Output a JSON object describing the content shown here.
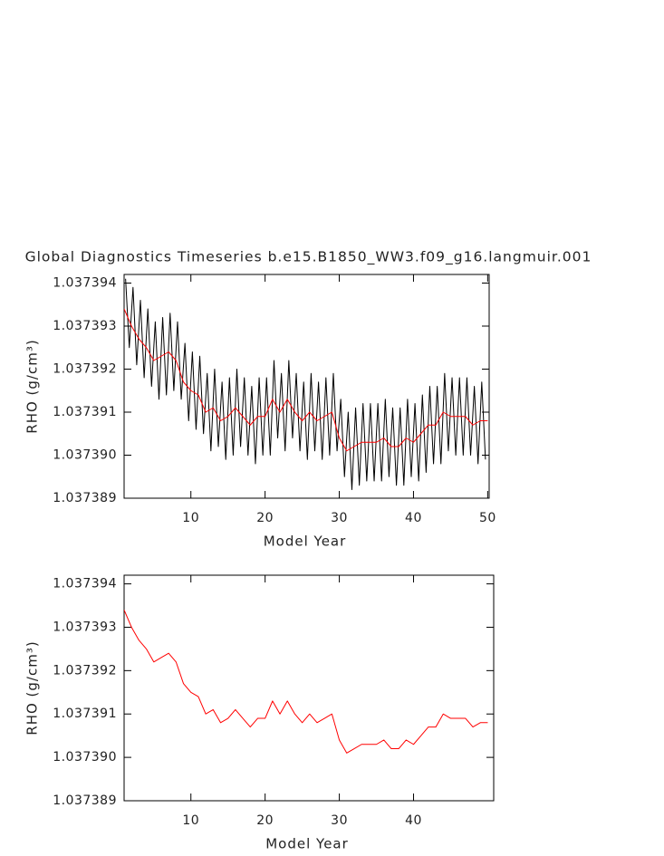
{
  "chart_data": [
    {
      "type": "line",
      "title": "Global Diagnostics Timeseries b.e15.B1850_WW3.f09_g16.langmuir.001",
      "xlabel": "Model Year",
      "ylabel": "RHO (g/cm³)",
      "xlim": [
        1,
        50.2
      ],
      "xticks": [
        10,
        20,
        30,
        40,
        50
      ],
      "ylim": [
        1.037389,
        1.0373942
      ],
      "yticks": [
        1.037389,
        {
          "value": 1.03739,
          "label": "1.037390"
        },
        1.037391,
        1.037392,
        1.037393,
        1.037394
      ],
      "series": [
        {
          "color": "#000000",
          "x": [
            1.2,
            1.7,
            2.2,
            2.7,
            3.2,
            3.7,
            4.2,
            4.7,
            5.2,
            5.7,
            6.2,
            6.7,
            7.2,
            7.7,
            8.2,
            8.7,
            9.2,
            9.7,
            10.2,
            10.7,
            11.2,
            11.7,
            12.2,
            12.7,
            13.2,
            13.7,
            14.2,
            14.7,
            15.2,
            15.7,
            16.2,
            16.7,
            17.2,
            17.7,
            18.2,
            18.7,
            19.2,
            19.7,
            20.2,
            20.7,
            21.2,
            21.7,
            22.2,
            22.7,
            23.2,
            23.7,
            24.2,
            24.7,
            25.2,
            25.7,
            26.2,
            26.7,
            27.2,
            27.7,
            28.2,
            28.7,
            29.2,
            29.7,
            30.2,
            30.7,
            31.2,
            31.7,
            32.2,
            32.7,
            33.2,
            33.7,
            34.2,
            34.7,
            35.2,
            35.7,
            36.2,
            36.7,
            37.2,
            37.7,
            38.2,
            38.7,
            39.2,
            39.7,
            40.2,
            40.7,
            41.2,
            41.7,
            42.2,
            42.7,
            43.2,
            43.7,
            44.2,
            44.7,
            45.2,
            45.7,
            46.2,
            46.7,
            47.2,
            47.7,
            48.2,
            48.7,
            49.2,
            49.7
          ],
          "values": [
            1.0373941,
            1.0373925,
            1.0373939,
            1.0373921,
            1.0373936,
            1.0373918,
            1.0373934,
            1.0373916,
            1.0373931,
            1.0373913,
            1.0373932,
            1.0373914,
            1.0373933,
            1.0373915,
            1.0373931,
            1.0373913,
            1.0373926,
            1.0373908,
            1.0373924,
            1.0373906,
            1.0373923,
            1.0373905,
            1.0373919,
            1.0373901,
            1.037392,
            1.0373902,
            1.0373917,
            1.0373899,
            1.0373918,
            1.03739,
            1.037392,
            1.0373902,
            1.0373918,
            1.03739,
            1.0373916,
            1.0373898,
            1.0373918,
            1.03739,
            1.0373918,
            1.03739,
            1.0373922,
            1.0373904,
            1.0373919,
            1.0373901,
            1.0373922,
            1.0373904,
            1.0373919,
            1.0373901,
            1.0373917,
            1.0373899,
            1.0373919,
            1.0373901,
            1.0373917,
            1.0373899,
            1.0373918,
            1.03739,
            1.0373919,
            1.0373901,
            1.0373913,
            1.0373895,
            1.037391,
            1.0373892,
            1.0373911,
            1.0373893,
            1.0373912,
            1.0373894,
            1.0373912,
            1.0373894,
            1.0373912,
            1.0373894,
            1.0373913,
            1.0373895,
            1.0373911,
            1.0373893,
            1.0373911,
            1.0373893,
            1.0373913,
            1.0373895,
            1.0373912,
            1.0373894,
            1.0373914,
            1.0373896,
            1.0373916,
            1.0373898,
            1.0373916,
            1.0373898,
            1.0373919,
            1.0373901,
            1.0373918,
            1.03739,
            1.0373918,
            1.03739,
            1.0373918,
            1.03739,
            1.0373916,
            1.0373898,
            1.0373917,
            1.0373899
          ]
        },
        {
          "color": "#ff0000",
          "x": [
            1,
            2,
            3,
            4,
            5,
            6,
            7,
            8,
            9,
            10,
            11,
            12,
            13,
            14,
            15,
            16,
            17,
            18,
            19,
            20,
            21,
            22,
            23,
            24,
            25,
            26,
            27,
            28,
            29,
            30,
            31,
            32,
            33,
            34,
            35,
            36,
            37,
            38,
            39,
            40,
            41,
            42,
            43,
            44,
            45,
            46,
            47,
            48,
            49,
            50
          ],
          "values": [
            1.0373934,
            1.037393,
            1.0373927,
            1.0373925,
            1.0373922,
            1.0373923,
            1.0373924,
            1.0373922,
            1.0373917,
            1.0373915,
            1.0373914,
            1.037391,
            1.0373911,
            1.0373908,
            1.0373909,
            1.0373911,
            1.0373909,
            1.0373907,
            1.0373909,
            1.0373909,
            1.0373913,
            1.037391,
            1.0373913,
            1.037391,
            1.0373908,
            1.037391,
            1.0373908,
            1.0373909,
            1.037391,
            1.0373904,
            1.0373901,
            1.0373902,
            1.0373903,
            1.0373903,
            1.0373903,
            1.0373904,
            1.0373902,
            1.0373902,
            1.0373904,
            1.0373903,
            1.0373905,
            1.0373907,
            1.0373907,
            1.037391,
            1.0373909,
            1.0373909,
            1.0373909,
            1.0373907,
            1.0373908,
            1.0373908
          ]
        }
      ]
    },
    {
      "type": "line",
      "xlabel": "Model Year",
      "ylabel": "RHO (g/cm³)",
      "xlim": [
        1,
        50.8
      ],
      "xticks": [
        10,
        20,
        30,
        40
      ],
      "ylim": [
        1.037389,
        1.0373942
      ],
      "yticks": [
        1.037389,
        {
          "value": 1.03739,
          "label": "1.037390"
        },
        1.037391,
        1.037392,
        1.037393,
        1.037394
      ],
      "series": [
        {
          "color": "#ff0000",
          "x": [
            1,
            2,
            3,
            4,
            5,
            6,
            7,
            8,
            9,
            10,
            11,
            12,
            13,
            14,
            15,
            16,
            17,
            18,
            19,
            20,
            21,
            22,
            23,
            24,
            25,
            26,
            27,
            28,
            29,
            30,
            31,
            32,
            33,
            34,
            35,
            36,
            37,
            38,
            39,
            40,
            41,
            42,
            43,
            44,
            45,
            46,
            47,
            48,
            49,
            50
          ],
          "values": [
            1.0373934,
            1.037393,
            1.0373927,
            1.0373925,
            1.0373922,
            1.0373923,
            1.0373924,
            1.0373922,
            1.0373917,
            1.0373915,
            1.0373914,
            1.037391,
            1.0373911,
            1.0373908,
            1.0373909,
            1.0373911,
            1.0373909,
            1.0373907,
            1.0373909,
            1.0373909,
            1.0373913,
            1.037391,
            1.0373913,
            1.037391,
            1.0373908,
            1.037391,
            1.0373908,
            1.0373909,
            1.037391,
            1.0373904,
            1.0373901,
            1.0373902,
            1.0373903,
            1.0373903,
            1.0373903,
            1.0373904,
            1.0373902,
            1.0373902,
            1.0373904,
            1.0373903,
            1.0373905,
            1.0373907,
            1.0373907,
            1.037391,
            1.0373909,
            1.0373909,
            1.0373909,
            1.0373907,
            1.0373908,
            1.0373908
          ]
        }
      ]
    }
  ]
}
